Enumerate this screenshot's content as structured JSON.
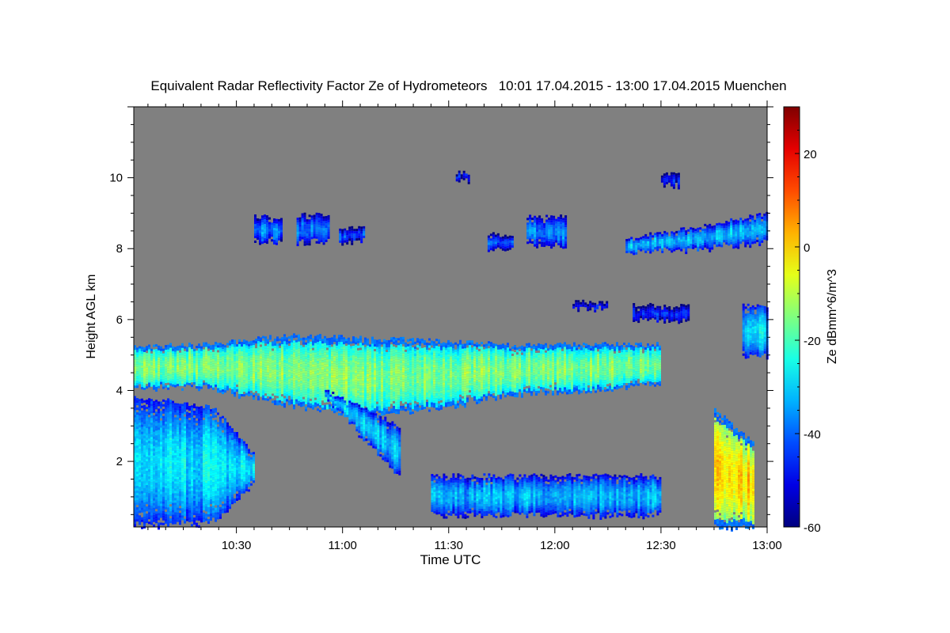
{
  "chart_data": {
    "type": "heatmap",
    "title": "Equivalent Radar Reflectivity Factor Ze of Hydrometeors   10:01 17.04.2015 - 13:00 17.04.2015 Muenchen",
    "xlabel": "Time UTC",
    "ylabel": "Height AGL km",
    "colorbar_label": "Ze dBmm^6/m^3",
    "xlim_minutes_after_10": [
      1,
      180
    ],
    "ylim": [
      0.15,
      12
    ],
    "x_ticks": [
      {
        "min": 30,
        "label": "10:30"
      },
      {
        "min": 60,
        "label": "11:00"
      },
      {
        "min": 90,
        "label": "11:30"
      },
      {
        "min": 120,
        "label": "12:00"
      },
      {
        "min": 150,
        "label": "12:30"
      },
      {
        "min": 180,
        "label": "13:00"
      }
    ],
    "y_ticks": [
      {
        "v": 2,
        "label": "2"
      },
      {
        "v": 4,
        "label": "4"
      },
      {
        "v": 6,
        "label": "6"
      },
      {
        "v": 8,
        "label": "8"
      },
      {
        "v": 10,
        "label": "10"
      }
    ],
    "colorbar_range": [
      -60,
      30
    ],
    "colorbar_ticks": [
      {
        "v": -60,
        "label": "-60"
      },
      {
        "v": -40,
        "label": "-40"
      },
      {
        "v": -20,
        "label": "-20"
      },
      {
        "v": 0,
        "label": "0"
      },
      {
        "v": 20,
        "label": "20"
      }
    ],
    "colormap": "jet",
    "background_color": "#808080",
    "echo_regions": [
      {
        "name": "main-cloud-layer",
        "t": [
          1,
          150
        ],
        "bottom": [
          4.1,
          4.1,
          3.6,
          3.3,
          3.5,
          3.9,
          4.0,
          4.2
        ],
        "top": [
          5.25,
          5.3,
          5.55,
          5.5,
          5.4,
          5.3,
          5.3,
          5.3
        ],
        "ze": -15
      },
      {
        "name": "lower-left-precip",
        "t": [
          1,
          35
        ],
        "bottom": [
          0.2,
          0.2,
          0.3,
          1.4
        ],
        "top": [
          3.8,
          3.7,
          3.5,
          2.2
        ],
        "ze": -28
      },
      {
        "name": "fallstreak",
        "t": [
          55,
          76
        ],
        "bottom": [
          3.8,
          1.6
        ],
        "top": [
          4.0,
          3.0
        ],
        "ze": -30
      },
      {
        "name": "cirrus-1",
        "t": [
          35,
          43
        ],
        "bottom": [
          8.2
        ],
        "top": [
          8.9
        ],
        "ze": -38
      },
      {
        "name": "cirrus-2",
        "t": [
          47,
          56
        ],
        "bottom": [
          8.2
        ],
        "top": [
          8.95
        ],
        "ze": -38
      },
      {
        "name": "cirrus-3",
        "t": [
          59,
          66
        ],
        "bottom": [
          8.2
        ],
        "top": [
          8.6
        ],
        "ze": -42
      },
      {
        "name": "cirrus-4",
        "t": [
          101,
          108
        ],
        "bottom": [
          8.0
        ],
        "top": [
          8.4
        ],
        "ze": -42
      },
      {
        "name": "cirrus-5",
        "t": [
          112,
          123
        ],
        "bottom": [
          8.1
        ],
        "top": [
          8.9
        ],
        "ze": -36
      },
      {
        "name": "cirrus-6",
        "t": [
          140,
          180
        ],
        "bottom": [
          7.9,
          8.0,
          8.2
        ],
        "top": [
          8.3,
          8.6,
          9.0
        ],
        "ze": -32
      },
      {
        "name": "midlevel-1",
        "t": [
          142,
          158
        ],
        "bottom": [
          6.0
        ],
        "top": [
          6.4
        ],
        "ze": -45
      },
      {
        "name": "midlevel-2",
        "t": [
          125,
          135
        ],
        "bottom": [
          6.3
        ],
        "top": [
          6.5
        ],
        "ze": -48
      },
      {
        "name": "midlevel-3",
        "t": [
          173,
          180
        ],
        "bottom": [
          5.0
        ],
        "top": [
          6.4
        ],
        "ze": -30
      },
      {
        "name": "high-patch-1",
        "t": [
          92,
          96
        ],
        "bottom": [
          9.95
        ],
        "top": [
          10.15
        ],
        "ze": -48
      },
      {
        "name": "high-patch-2",
        "t": [
          150,
          155
        ],
        "bottom": [
          9.8
        ],
        "top": [
          10.1
        ],
        "ze": -48
      },
      {
        "name": "low-showers",
        "t": [
          85,
          150
        ],
        "bottom": [
          0.5
        ],
        "top": [
          1.6
        ],
        "ze": -33
      },
      {
        "name": "convective-cell",
        "t": [
          165,
          176
        ],
        "bottom": [
          0.15,
          0.15
        ],
        "top": [
          3.5,
          2.5
        ],
        "ze": 0
      }
    ]
  }
}
